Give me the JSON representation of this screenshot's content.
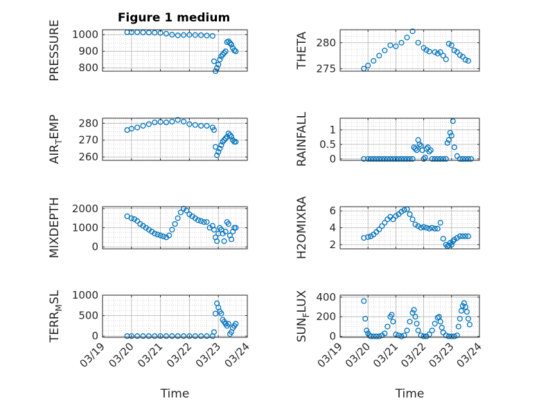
{
  "title": "Figure 1 medium",
  "marker_color": "#0072BD",
  "grid_color": "#b0b0b0",
  "axis_color": "#262626",
  "chart_data": [
    {
      "type": "scatter",
      "ylabel": "PRESSURE",
      "ylim": [
        780,
        1030
      ],
      "yticks": [
        800,
        900,
        1000
      ],
      "xlim": [
        0,
        5
      ],
      "xticks": [
        "03/19",
        "03/20",
        "03/21",
        "03/22",
        "03/23",
        "03/24"
      ],
      "xlabel": "",
      "x": [
        0.85,
        1.0,
        1.2,
        1.4,
        1.6,
        1.8,
        2.0,
        2.2,
        2.4,
        2.6,
        2.8,
        3.0,
        3.2,
        3.4,
        3.6,
        3.8,
        3.85,
        3.9,
        3.95,
        4.0,
        4.05,
        4.1,
        4.15,
        4.2,
        4.25,
        4.3,
        4.35,
        4.4,
        4.45,
        4.5,
        4.55,
        4.6
      ],
      "y": [
        1015,
        1015,
        1015,
        1014,
        1013,
        1012,
        1011,
        1006,
        1000,
        996,
        998,
        999,
        998,
        997,
        995,
        993,
        840,
        780,
        800,
        820,
        850,
        870,
        880,
        890,
        900,
        955,
        960,
        950,
        940,
        920,
        905,
        900
      ]
    },
    {
      "type": "scatter",
      "ylabel": "THETA",
      "ylim": [
        274.5,
        282.5
      ],
      "yticks": [
        275,
        280
      ],
      "xlim": [
        0,
        5
      ],
      "xticks": [
        "03/19",
        "03/20",
        "03/21",
        "03/22",
        "03/23",
        "03/24"
      ],
      "xlabel": "",
      "x": [
        0.85,
        1.0,
        1.2,
        1.4,
        1.6,
        1.8,
        2.0,
        2.2,
        2.4,
        2.6,
        2.8,
        3.0,
        3.1,
        3.2,
        3.4,
        3.5,
        3.6,
        3.7,
        3.8,
        3.9,
        4.0,
        4.1,
        4.2,
        4.3,
        4.4,
        4.5,
        4.6
      ],
      "y": [
        275,
        275.6,
        276.5,
        277.5,
        278.5,
        279.5,
        279.3,
        280,
        281,
        282.2,
        280,
        279,
        278.6,
        278.3,
        278.2,
        277.9,
        278.2,
        277.5,
        276.8,
        279.8,
        279.5,
        278.5,
        278.2,
        277.6,
        277.3,
        276.7,
        276.5
      ]
    },
    {
      "type": "scatter",
      "ylabel": "AIR_TEMP",
      "ylim": [
        258,
        283
      ],
      "yticks": [
        260,
        270,
        280
      ],
      "xlim": [
        0,
        5
      ],
      "xticks": [
        "03/19",
        "03/20",
        "03/21",
        "03/22",
        "03/23",
        "03/24"
      ],
      "xlabel": "",
      "x": [
        0.85,
        1.0,
        1.2,
        1.4,
        1.6,
        1.8,
        2.0,
        2.2,
        2.4,
        2.6,
        2.8,
        3.0,
        3.2,
        3.4,
        3.6,
        3.8,
        3.85,
        3.9,
        3.95,
        4.0,
        4.05,
        4.1,
        4.15,
        4.2,
        4.25,
        4.3,
        4.35,
        4.4,
        4.45,
        4.5,
        4.55,
        4.6
      ],
      "y": [
        276,
        276.8,
        277.5,
        278.5,
        279.5,
        280.5,
        280.8,
        280.5,
        281,
        282,
        281,
        279.5,
        279,
        278.5,
        278.5,
        277.5,
        276,
        266,
        261,
        263,
        265,
        267,
        269,
        270,
        271,
        272,
        274,
        273,
        272,
        270,
        269,
        269
      ]
    },
    {
      "type": "scatter",
      "ylabel": "RAINFALL",
      "ylim": [
        -0.05,
        1.4
      ],
      "yticks": [
        0,
        0.5,
        1
      ],
      "ytick_labels": [
        "0",
        "0.5",
        "1"
      ],
      "xlim": [
        0,
        5
      ],
      "xticks": [
        "03/19",
        "03/20",
        "03/21",
        "03/22",
        "03/23",
        "03/24"
      ],
      "xlabel": "",
      "x": [
        0.85,
        1.0,
        1.1,
        1.2,
        1.3,
        1.4,
        1.5,
        1.6,
        1.7,
        1.8,
        1.9,
        2.0,
        2.1,
        2.2,
        2.3,
        2.4,
        2.5,
        2.6,
        2.65,
        2.7,
        2.75,
        2.8,
        2.85,
        2.9,
        2.95,
        3.0,
        3.05,
        3.1,
        3.15,
        3.2,
        3.25,
        3.3,
        3.4,
        3.5,
        3.6,
        3.7,
        3.8,
        3.85,
        3.9,
        3.95,
        4.0,
        4.05,
        4.1,
        4.2,
        4.3,
        4.4,
        4.5,
        4.6,
        4.7
      ],
      "y": [
        0,
        0,
        0,
        0,
        0,
        0,
        0,
        0,
        0,
        0,
        0,
        0,
        0,
        0,
        0,
        0,
        0,
        0,
        0.4,
        0.35,
        0.3,
        0.65,
        0.5,
        0.45,
        0.3,
        0,
        0.05,
        0.35,
        0.4,
        0.25,
        0.3,
        0,
        0,
        0,
        0,
        0,
        0,
        0.55,
        0.65,
        0.9,
        0.8,
        1.3,
        0.4,
        0.1,
        0,
        0,
        0,
        0,
        0
      ]
    },
    {
      "type": "scatter",
      "ylabel": "MIXDEPTH",
      "ylim": [
        -100,
        2100
      ],
      "yticks": [
        0,
        1000,
        2000
      ],
      "xlim": [
        0,
        5
      ],
      "xticks": [
        "03/19",
        "03/20",
        "03/21",
        "03/22",
        "03/23",
        "03/24"
      ],
      "xlabel": "",
      "x": [
        0.85,
        1.0,
        1.1,
        1.2,
        1.3,
        1.4,
        1.5,
        1.6,
        1.7,
        1.8,
        1.9,
        2.0,
        2.1,
        2.2,
        2.3,
        2.4,
        2.5,
        2.6,
        2.7,
        2.8,
        2.9,
        3.0,
        3.1,
        3.2,
        3.3,
        3.4,
        3.5,
        3.6,
        3.7,
        3.8,
        3.85,
        3.9,
        3.95,
        4.0,
        4.05,
        4.1,
        4.15,
        4.2,
        4.25,
        4.3,
        4.35,
        4.4,
        4.45,
        4.5,
        4.55,
        4.6
      ],
      "y": [
        1600,
        1500,
        1450,
        1350,
        1200,
        1100,
        1000,
        900,
        800,
        700,
        650,
        600,
        550,
        500,
        600,
        900,
        1200,
        1500,
        1800,
        2000,
        1900,
        1700,
        1600,
        1500,
        1400,
        1350,
        1300,
        1300,
        1000,
        1100,
        900,
        500,
        300,
        700,
        1000,
        900,
        700,
        300,
        800,
        1300,
        1200,
        600,
        400,
        800,
        1000,
        1000
      ]
    },
    {
      "type": "scatter",
      "ylabel": "H2OMIXRA",
      "ylim": [
        1.5,
        6.5
      ],
      "yticks": [
        2,
        4,
        6
      ],
      "xlim": [
        0,
        5
      ],
      "xticks": [
        "03/19",
        "03/20",
        "03/21",
        "03/22",
        "03/23",
        "03/24"
      ],
      "xlabel": "",
      "x": [
        0.85,
        1.0,
        1.1,
        1.2,
        1.3,
        1.4,
        1.5,
        1.6,
        1.7,
        1.8,
        1.9,
        2.0,
        2.1,
        2.2,
        2.3,
        2.4,
        2.5,
        2.6,
        2.7,
        2.8,
        2.9,
        3.0,
        3.1,
        3.2,
        3.3,
        3.4,
        3.5,
        3.6,
        3.7,
        3.8,
        3.85,
        3.9,
        3.95,
        4.0,
        4.05,
        4.1,
        4.2,
        4.3,
        4.4,
        4.5,
        4.6
      ],
      "y": [
        2.8,
        2.9,
        3.0,
        3.2,
        3.5,
        3.8,
        4.2,
        4.6,
        5.0,
        5.3,
        5.0,
        5.4,
        5.6,
        5.9,
        6.1,
        6.2,
        5.6,
        5.0,
        4.4,
        4.2,
        4.0,
        4.1,
        4.0,
        3.9,
        4.0,
        3.9,
        3.9,
        4.6,
        2.7,
        2.0,
        1.8,
        1.9,
        2.2,
        2.0,
        2.4,
        2.6,
        2.8,
        3.0,
        3.0,
        3.0,
        3.0
      ]
    },
    {
      "type": "scatter",
      "ylabel": "TERR_MSL",
      "ylim": [
        -30,
        1000
      ],
      "yticks": [
        0,
        500,
        1000
      ],
      "xlim": [
        0,
        5
      ],
      "xticks": [
        "03/19",
        "03/20",
        "03/21",
        "03/22",
        "03/23",
        "03/24"
      ],
      "xlabel": "Time",
      "x": [
        0.85,
        1.0,
        1.2,
        1.4,
        1.6,
        1.8,
        2.0,
        2.2,
        2.4,
        2.6,
        2.8,
        3.0,
        3.2,
        3.4,
        3.6,
        3.8,
        3.85,
        3.9,
        3.95,
        4.0,
        4.05,
        4.1,
        4.15,
        4.2,
        4.25,
        4.3,
        4.35,
        4.4,
        4.45,
        4.5,
        4.55,
        4.6
      ],
      "y": [
        0,
        0,
        0,
        0,
        0,
        0,
        0,
        0,
        0,
        0,
        0,
        0,
        0,
        0,
        0,
        0,
        100,
        550,
        800,
        700,
        600,
        550,
        400,
        350,
        300,
        250,
        300,
        50,
        100,
        200,
        250,
        300
      ]
    },
    {
      "type": "scatter",
      "ylabel": "SUN_FLUX",
      "ylim": [
        -10,
        420
      ],
      "yticks": [
        0,
        200,
        400
      ],
      "xlim": [
        0,
        5
      ],
      "xticks": [
        "03/19",
        "03/20",
        "03/21",
        "03/22",
        "03/23",
        "03/24"
      ],
      "xlabel": "Time",
      "x": [
        0.85,
        0.9,
        0.95,
        1.0,
        1.05,
        1.1,
        1.2,
        1.3,
        1.4,
        1.5,
        1.6,
        1.7,
        1.8,
        1.85,
        1.9,
        2.0,
        2.1,
        2.2,
        2.3,
        2.4,
        2.5,
        2.6,
        2.65,
        2.7,
        2.75,
        2.8,
        2.9,
        3.0,
        3.1,
        3.2,
        3.3,
        3.4,
        3.5,
        3.55,
        3.6,
        3.65,
        3.7,
        3.8,
        3.9,
        4.0,
        4.1,
        4.2,
        4.25,
        4.3,
        4.35,
        4.4,
        4.45,
        4.5,
        4.55,
        4.6,
        4.65
      ],
      "y": [
        360,
        180,
        60,
        30,
        10,
        0,
        0,
        0,
        0,
        10,
        30,
        100,
        200,
        220,
        150,
        20,
        10,
        0,
        10,
        60,
        150,
        240,
        270,
        200,
        130,
        60,
        10,
        0,
        0,
        20,
        60,
        130,
        190,
        200,
        150,
        90,
        40,
        10,
        0,
        0,
        0,
        10,
        100,
        180,
        260,
        310,
        340,
        300,
        250,
        180,
        120
      ]
    }
  ]
}
